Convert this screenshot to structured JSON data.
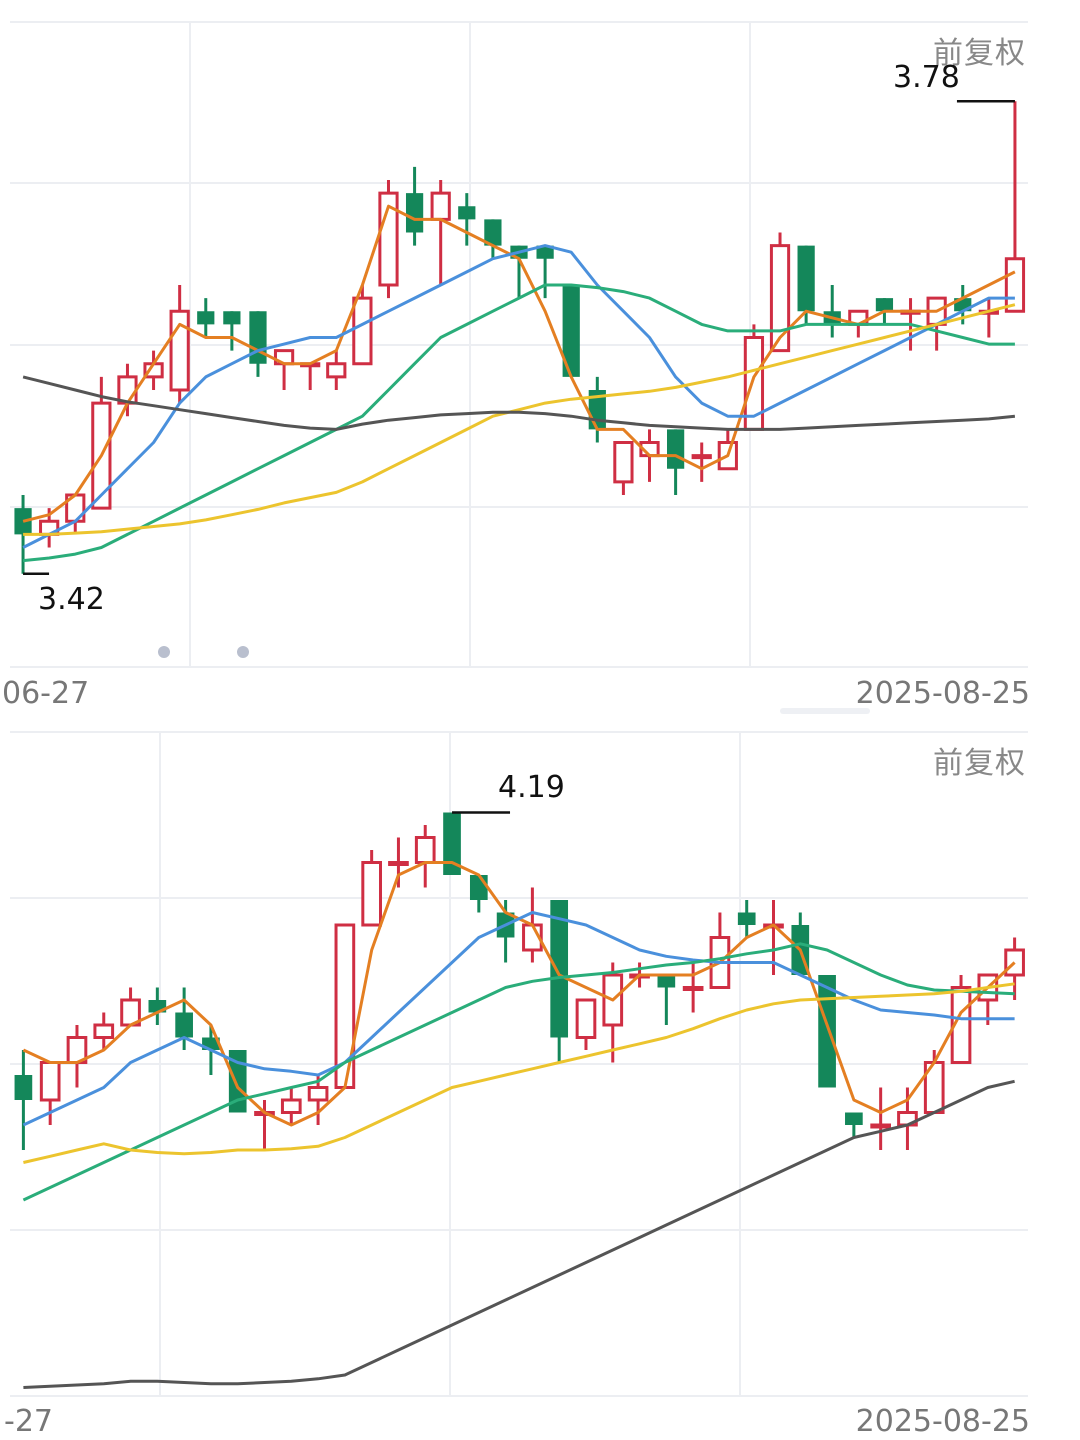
{
  "colors": {
    "up": "#cf2e43",
    "down": "#14875a",
    "ma_orange": "#e47f22",
    "ma_blue": "#4a90dc",
    "ma_green": "#2aad7a",
    "ma_yellow": "#ecc42e",
    "ma_dark": "#555555",
    "grid": "#eceef2"
  },
  "chart_data": [
    {
      "type": "candlestick",
      "adjust_label": "前复权",
      "date_start": "06-27",
      "date_end": "2025-08-25",
      "high_label": "3.78",
      "low_label": "3.42",
      "ylim": [
        3.4,
        3.8
      ],
      "candles": [
        {
          "o": 3.47,
          "h": 3.48,
          "l": 3.42,
          "c": 3.45
        },
        {
          "o": 3.45,
          "h": 3.47,
          "l": 3.44,
          "c": 3.46
        },
        {
          "o": 3.46,
          "h": 3.48,
          "l": 3.45,
          "c": 3.48
        },
        {
          "o": 3.47,
          "h": 3.57,
          "l": 3.47,
          "c": 3.55
        },
        {
          "o": 3.55,
          "h": 3.58,
          "l": 3.54,
          "c": 3.57
        },
        {
          "o": 3.57,
          "h": 3.59,
          "l": 3.56,
          "c": 3.58
        },
        {
          "o": 3.56,
          "h": 3.64,
          "l": 3.55,
          "c": 3.62
        },
        {
          "o": 3.62,
          "h": 3.63,
          "l": 3.6,
          "c": 3.61
        },
        {
          "o": 3.62,
          "h": 3.62,
          "l": 3.59,
          "c": 3.61
        },
        {
          "o": 3.62,
          "h": 3.62,
          "l": 3.57,
          "c": 3.58
        },
        {
          "o": 3.58,
          "h": 3.59,
          "l": 3.56,
          "c": 3.59
        },
        {
          "o": 3.58,
          "h": 3.58,
          "l": 3.56,
          "c": 3.58
        },
        {
          "o": 3.57,
          "h": 3.59,
          "l": 3.56,
          "c": 3.58
        },
        {
          "o": 3.58,
          "h": 3.64,
          "l": 3.58,
          "c": 3.63
        },
        {
          "o": 3.64,
          "h": 3.72,
          "l": 3.63,
          "c": 3.71
        },
        {
          "o": 3.71,
          "h": 3.73,
          "l": 3.67,
          "c": 3.68
        },
        {
          "o": 3.69,
          "h": 3.72,
          "l": 3.64,
          "c": 3.71
        },
        {
          "o": 3.7,
          "h": 3.71,
          "l": 3.67,
          "c": 3.69
        },
        {
          "o": 3.69,
          "h": 3.69,
          "l": 3.66,
          "c": 3.67
        },
        {
          "o": 3.67,
          "h": 3.67,
          "l": 3.63,
          "c": 3.66
        },
        {
          "o": 3.67,
          "h": 3.67,
          "l": 3.63,
          "c": 3.66
        },
        {
          "o": 3.64,
          "h": 3.64,
          "l": 3.57,
          "c": 3.57
        },
        {
          "o": 3.56,
          "h": 3.57,
          "l": 3.52,
          "c": 3.53
        },
        {
          "o": 3.49,
          "h": 3.52,
          "l": 3.48,
          "c": 3.52
        },
        {
          "o": 3.51,
          "h": 3.53,
          "l": 3.49,
          "c": 3.52
        },
        {
          "o": 3.53,
          "h": 3.53,
          "l": 3.48,
          "c": 3.5
        },
        {
          "o": 3.51,
          "h": 3.52,
          "l": 3.49,
          "c": 3.51
        },
        {
          "o": 3.5,
          "h": 3.53,
          "l": 3.5,
          "c": 3.52
        },
        {
          "o": 3.53,
          "h": 3.61,
          "l": 3.53,
          "c": 3.6
        },
        {
          "o": 3.59,
          "h": 3.68,
          "l": 3.59,
          "c": 3.67
        },
        {
          "o": 3.67,
          "h": 3.67,
          "l": 3.61,
          "c": 3.62
        },
        {
          "o": 3.62,
          "h": 3.64,
          "l": 3.6,
          "c": 3.61
        },
        {
          "o": 3.61,
          "h": 3.62,
          "l": 3.6,
          "c": 3.62
        },
        {
          "o": 3.63,
          "h": 3.63,
          "l": 3.61,
          "c": 3.62
        },
        {
          "o": 3.62,
          "h": 3.63,
          "l": 3.59,
          "c": 3.62
        },
        {
          "o": 3.61,
          "h": 3.63,
          "l": 3.59,
          "c": 3.63
        },
        {
          "o": 3.63,
          "h": 3.64,
          "l": 3.61,
          "c": 3.62
        },
        {
          "o": 3.62,
          "h": 3.63,
          "l": 3.6,
          "c": 3.62
        },
        {
          "o": 3.62,
          "h": 3.78,
          "l": 3.62,
          "c": 3.66
        }
      ],
      "ma": [
        {
          "color_key": "ma_orange",
          "values": [
            3.46,
            3.465,
            3.48,
            3.51,
            3.55,
            3.58,
            3.61,
            3.6,
            3.6,
            3.59,
            3.58,
            3.58,
            3.59,
            3.64,
            3.7,
            3.69,
            3.69,
            3.68,
            3.67,
            3.66,
            3.62,
            3.57,
            3.53,
            3.53,
            3.51,
            3.51,
            3.5,
            3.51,
            3.57,
            3.6,
            3.62,
            3.615,
            3.61,
            3.62,
            3.62,
            3.62,
            3.63,
            3.64,
            3.65
          ]
        },
        {
          "color_key": "ma_blue",
          "values": [
            3.44,
            3.45,
            3.46,
            3.48,
            3.5,
            3.52,
            3.55,
            3.57,
            3.58,
            3.59,
            3.595,
            3.6,
            3.6,
            3.61,
            3.62,
            3.63,
            3.64,
            3.65,
            3.66,
            3.665,
            3.67,
            3.665,
            3.64,
            3.62,
            3.6,
            3.57,
            3.55,
            3.54,
            3.54,
            3.55,
            3.56,
            3.57,
            3.58,
            3.59,
            3.6,
            3.61,
            3.62,
            3.63,
            3.63
          ]
        },
        {
          "color_key": "ma_green",
          "values": [
            3.43,
            3.432,
            3.435,
            3.44,
            3.45,
            3.46,
            3.47,
            3.48,
            3.49,
            3.5,
            3.51,
            3.52,
            3.53,
            3.54,
            3.56,
            3.58,
            3.6,
            3.61,
            3.62,
            3.63,
            3.64,
            3.64,
            3.638,
            3.635,
            3.63,
            3.62,
            3.61,
            3.605,
            3.605,
            3.605,
            3.61,
            3.61,
            3.61,
            3.61,
            3.61,
            3.605,
            3.6,
            3.595,
            3.595
          ]
        },
        {
          "color_key": "ma_yellow",
          "values": [
            3.45,
            3.45,
            3.451,
            3.452,
            3.454,
            3.456,
            3.458,
            3.461,
            3.465,
            3.469,
            3.474,
            3.478,
            3.482,
            3.49,
            3.5,
            3.51,
            3.52,
            3.53,
            3.54,
            3.545,
            3.55,
            3.553,
            3.555,
            3.557,
            3.559,
            3.562,
            3.566,
            3.57,
            3.575,
            3.58,
            3.585,
            3.59,
            3.595,
            3.6,
            3.605,
            3.61,
            3.615,
            3.62,
            3.625
          ]
        },
        {
          "color_key": "ma_dark",
          "values": [
            3.57,
            3.565,
            3.56,
            3.555,
            3.551,
            3.548,
            3.545,
            3.542,
            3.539,
            3.536,
            3.533,
            3.531,
            3.53,
            3.534,
            3.537,
            3.539,
            3.541,
            3.542,
            3.543,
            3.543,
            3.542,
            3.54,
            3.537,
            3.535,
            3.533,
            3.532,
            3.531,
            3.53,
            3.53,
            3.53,
            3.531,
            3.532,
            3.533,
            3.534,
            3.535,
            3.536,
            3.537,
            3.538,
            3.54
          ]
        }
      ]
    },
    {
      "type": "candlestick",
      "adjust_label": "前复权",
      "date_start": "-27",
      "date_end": "2025-08-25",
      "high_label": "4.19",
      "ylim": [
        3.6,
        4.2
      ],
      "candles": [
        {
          "o": 3.98,
          "h": 4.0,
          "l": 3.92,
          "c": 3.96
        },
        {
          "o": 3.96,
          "h": 3.99,
          "l": 3.94,
          "c": 3.99
        },
        {
          "o": 3.99,
          "h": 4.02,
          "l": 3.97,
          "c": 4.01
        },
        {
          "o": 4.01,
          "h": 4.03,
          "l": 4.0,
          "c": 4.02
        },
        {
          "o": 4.02,
          "h": 4.05,
          "l": 4.02,
          "c": 4.04
        },
        {
          "o": 4.04,
          "h": 4.05,
          "l": 4.02,
          "c": 4.03
        },
        {
          "o": 4.03,
          "h": 4.05,
          "l": 4.0,
          "c": 4.01
        },
        {
          "o": 4.01,
          "h": 4.02,
          "l": 3.98,
          "c": 4.0
        },
        {
          "o": 4.0,
          "h": 4.0,
          "l": 3.95,
          "c": 3.95
        },
        {
          "o": 3.95,
          "h": 3.96,
          "l": 3.92,
          "c": 3.95
        },
        {
          "o": 3.95,
          "h": 3.97,
          "l": 3.94,
          "c": 3.96
        },
        {
          "o": 3.96,
          "h": 3.98,
          "l": 3.94,
          "c": 3.97
        },
        {
          "o": 3.97,
          "h": 4.1,
          "l": 3.97,
          "c": 4.1
        },
        {
          "o": 4.1,
          "h": 4.16,
          "l": 4.1,
          "c": 4.15
        },
        {
          "o": 4.15,
          "h": 4.17,
          "l": 4.13,
          "c": 4.15
        },
        {
          "o": 4.15,
          "h": 4.18,
          "l": 4.13,
          "c": 4.17
        },
        {
          "o": 4.19,
          "h": 4.19,
          "l": 4.14,
          "c": 4.14
        },
        {
          "o": 4.14,
          "h": 4.14,
          "l": 4.11,
          "c": 4.12
        },
        {
          "o": 4.11,
          "h": 4.12,
          "l": 4.07,
          "c": 4.09
        },
        {
          "o": 4.08,
          "h": 4.13,
          "l": 4.07,
          "c": 4.1
        },
        {
          "o": 4.12,
          "h": 4.12,
          "l": 3.99,
          "c": 4.01
        },
        {
          "o": 4.01,
          "h": 4.04,
          "l": 4.0,
          "c": 4.04
        },
        {
          "o": 4.02,
          "h": 4.07,
          "l": 3.99,
          "c": 4.06
        },
        {
          "o": 4.06,
          "h": 4.07,
          "l": 4.05,
          "c": 4.06
        },
        {
          "o": 4.06,
          "h": 4.06,
          "l": 4.02,
          "c": 4.05
        },
        {
          "o": 4.05,
          "h": 4.07,
          "l": 4.03,
          "c": 4.05
        },
        {
          "o": 4.05,
          "h": 4.11,
          "l": 4.05,
          "c": 4.09
        },
        {
          "o": 4.11,
          "h": 4.12,
          "l": 4.09,
          "c": 4.1
        },
        {
          "o": 4.1,
          "h": 4.12,
          "l": 4.06,
          "c": 4.1
        },
        {
          "o": 4.1,
          "h": 4.11,
          "l": 4.06,
          "c": 4.06
        },
        {
          "o": 4.06,
          "h": 4.06,
          "l": 3.97,
          "c": 3.97
        },
        {
          "o": 3.95,
          "h": 3.95,
          "l": 3.93,
          "c": 3.94
        },
        {
          "o": 3.94,
          "h": 3.97,
          "l": 3.92,
          "c": 3.94
        },
        {
          "o": 3.94,
          "h": 3.97,
          "l": 3.92,
          "c": 3.95
        },
        {
          "o": 3.95,
          "h": 4.0,
          "l": 3.95,
          "c": 3.99
        },
        {
          "o": 3.99,
          "h": 4.06,
          "l": 3.99,
          "c": 4.05
        },
        {
          "o": 4.04,
          "h": 4.06,
          "l": 4.02,
          "c": 4.06
        },
        {
          "o": 4.06,
          "h": 4.09,
          "l": 4.04,
          "c": 4.08
        }
      ],
      "ma": [
        {
          "color_key": "ma_orange",
          "values": [
            4.0,
            3.99,
            3.99,
            4.0,
            4.02,
            4.03,
            4.04,
            4.02,
            3.97,
            3.95,
            3.94,
            3.95,
            3.97,
            4.08,
            4.14,
            4.15,
            4.15,
            4.14,
            4.11,
            4.1,
            4.06,
            4.05,
            4.04,
            4.06,
            4.06,
            4.06,
            4.07,
            4.09,
            4.1,
            4.08,
            4.02,
            3.96,
            3.95,
            3.96,
            3.99,
            4.03,
            4.05,
            4.07
          ]
        },
        {
          "color_key": "ma_blue",
          "values": [
            3.94,
            3.95,
            3.96,
            3.97,
            3.99,
            4.0,
            4.01,
            4.0,
            3.99,
            3.985,
            3.983,
            3.98,
            3.99,
            4.01,
            4.03,
            4.05,
            4.07,
            4.09,
            4.1,
            4.11,
            4.105,
            4.1,
            4.09,
            4.08,
            4.075,
            4.072,
            4.07,
            4.07,
            4.07,
            4.06,
            4.05,
            4.04,
            4.032,
            4.03,
            4.028,
            4.025,
            4.025,
            4.025
          ]
        },
        {
          "color_key": "ma_green",
          "values": [
            3.88,
            3.89,
            3.9,
            3.91,
            3.92,
            3.93,
            3.94,
            3.95,
            3.96,
            3.965,
            3.97,
            3.975,
            3.99,
            4.0,
            4.01,
            4.02,
            4.03,
            4.04,
            4.05,
            4.055,
            4.058,
            4.06,
            4.062,
            4.065,
            4.068,
            4.07,
            4.073,
            4.077,
            4.08,
            4.085,
            4.08,
            4.07,
            4.06,
            4.052,
            4.048,
            4.047,
            4.046,
            4.045
          ]
        },
        {
          "color_key": "ma_yellow",
          "values": [
            3.91,
            3.915,
            3.92,
            3.925,
            3.92,
            3.918,
            3.917,
            3.918,
            3.92,
            3.92,
            3.921,
            3.923,
            3.93,
            3.94,
            3.95,
            3.96,
            3.97,
            3.975,
            3.98,
            3.985,
            3.99,
            3.995,
            4.0,
            4.005,
            4.01,
            4.017,
            4.025,
            4.032,
            4.037,
            4.04,
            4.041,
            4.042,
            4.043,
            4.044,
            4.045,
            4.047,
            4.05,
            4.053
          ]
        },
        {
          "color_key": "ma_dark",
          "values": [
            3.73,
            3.731,
            3.732,
            3.733,
            3.735,
            3.735,
            3.734,
            3.733,
            3.733,
            3.734,
            3.735,
            3.737,
            3.74,
            3.75,
            3.76,
            3.77,
            3.78,
            3.79,
            3.8,
            3.81,
            3.82,
            3.83,
            3.84,
            3.85,
            3.86,
            3.87,
            3.88,
            3.89,
            3.9,
            3.91,
            3.92,
            3.93,
            3.935,
            3.94,
            3.95,
            3.96,
            3.97,
            3.975
          ]
        }
      ]
    }
  ]
}
